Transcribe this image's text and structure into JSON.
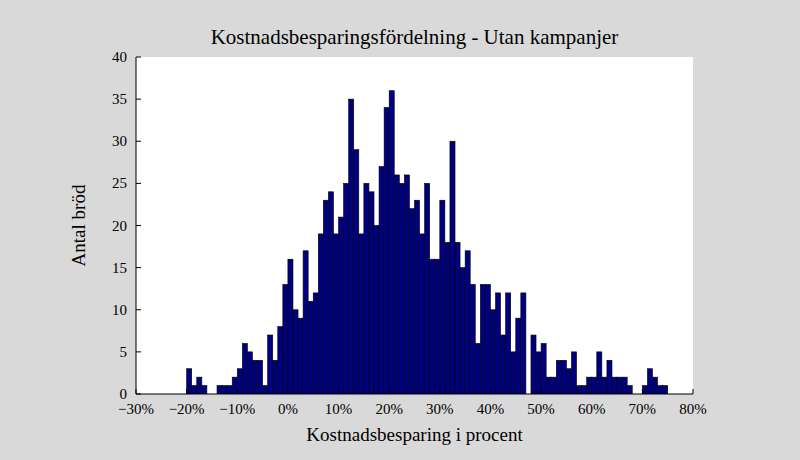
{
  "chart_data": {
    "type": "histogram",
    "title": "Kostnadsbesparingsfördelning - Utan kampanjer",
    "x_label": "Kostnadsbesparing i procent",
    "y_label": "Antal bröd",
    "color": "#00007f",
    "bins": [
      -20,
      -19,
      -18,
      -17,
      -16,
      -15,
      -14,
      -13,
      -12,
      -11,
      -10,
      -9,
      -8,
      -7,
      -6,
      -5,
      -4,
      -3,
      -2,
      -1,
      0,
      1,
      2,
      3,
      4,
      5,
      6,
      7,
      8,
      9,
      10,
      11,
      12,
      13,
      14,
      15,
      16,
      17,
      18,
      19,
      20,
      21,
      22,
      23,
      24,
      25,
      26,
      27,
      28,
      29,
      30,
      31,
      32,
      33,
      34,
      35,
      36,
      37,
      38,
      39,
      40,
      41,
      42,
      43,
      44,
      45,
      46,
      47,
      48,
      49,
      50,
      51,
      52,
      53,
      54,
      55,
      56,
      57,
      58,
      59,
      60,
      61,
      62,
      63,
      64,
      65,
      66,
      67,
      68,
      69,
      70,
      71,
      72,
      73,
      74,
      75
    ],
    "values": [
      3,
      1,
      2,
      1,
      0,
      0,
      1,
      1,
      1,
      2,
      3,
      6,
      5,
      4,
      4,
      1,
      7,
      4,
      8,
      13,
      16,
      10,
      9,
      17,
      11,
      12,
      19,
      23,
      24,
      19,
      21,
      25,
      35,
      29,
      19,
      25,
      24,
      20,
      27,
      34,
      36,
      26,
      25,
      26,
      22,
      23,
      19,
      25,
      16,
      16,
      23,
      18,
      30,
      18,
      15,
      17,
      13,
      6,
      13,
      13,
      10,
      12,
      7,
      12,
      5,
      9,
      12,
      0,
      7,
      5,
      6,
      2,
      2,
      4,
      4,
      3,
      5,
      1,
      1,
      2,
      2,
      5,
      2,
      4,
      2,
      2,
      2,
      1,
      0,
      0,
      1,
      3,
      2,
      1,
      1
    ],
    "xlim": [
      -30,
      80
    ],
    "xticks": [
      {
        "value": -30,
        "label": "−30%"
      },
      {
        "value": -20,
        "label": "−20%"
      },
      {
        "value": -10,
        "label": "−10%"
      },
      {
        "value": 0,
        "label": "0%"
      },
      {
        "value": 10,
        "label": "10%"
      },
      {
        "value": 20,
        "label": "20%"
      },
      {
        "value": 30,
        "label": "30%"
      },
      {
        "value": 40,
        "label": "40%"
      },
      {
        "value": 50,
        "label": "50%"
      },
      {
        "value": 60,
        "label": "60%"
      },
      {
        "value": 70,
        "label": "70%"
      },
      {
        "value": 80,
        "label": "80%"
      }
    ],
    "ylim": [
      0,
      40
    ],
    "yticks": [
      0,
      5,
      10,
      15,
      20,
      25,
      30,
      35,
      40
    ],
    "grid": false
  }
}
